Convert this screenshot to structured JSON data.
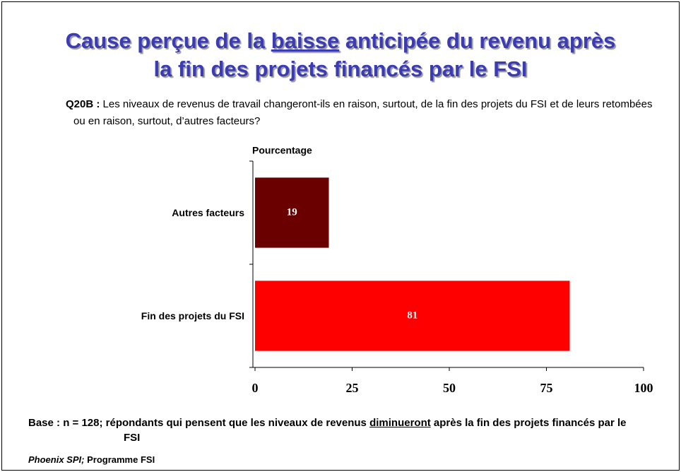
{
  "chart_data": {
    "type": "bar",
    "orientation": "horizontal",
    "title": [
      "Cause perçue de la ",
      "baisse",
      " anticipée du revenu après",
      "la fin des projets financés par le FSI"
    ],
    "question": {
      "label": "Q20B :",
      "text": "Les niveaux de revenus de travail changeront-ils en raison, surtout, de la fin des projets du FSI et de leurs retombées ou en raison, surtout, d’autres facteurs?"
    },
    "axis_label": "Pourcentage",
    "categories": [
      "Autres facteurs",
      "Fin des projets du FSI"
    ],
    "values": [
      19,
      81
    ],
    "colors": [
      "#6b0000",
      "#ff0000"
    ],
    "xlim": [
      0,
      100
    ],
    "xticks": [
      0,
      25,
      50,
      75,
      100
    ],
    "base": [
      "Base : n = 128; répondants qui pensent que les niveaux de revenus ",
      "diminueront",
      " après la fin des projets financés par le FSI"
    ],
    "source": {
      "italic": "Phoenix SPI;",
      "text": "Programme FSI"
    }
  }
}
